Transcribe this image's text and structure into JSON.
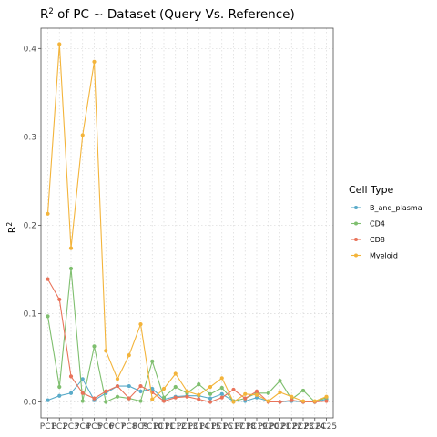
{
  "chart_data": {
    "type": "line",
    "title": "R",
    "title_sup": "2",
    "title_rest": " of PC ~  Dataset (Query Vs. Reference)",
    "xlabel": "",
    "ylabel": "R",
    "ylabel_sup": "2",
    "ylim": [
      -0.018,
      0.423
    ],
    "yticks": [
      0.0,
      0.1,
      0.2,
      0.3,
      0.4
    ],
    "ytick_labels": [
      "0.0",
      "0.1",
      "0.2",
      "0.3",
      "0.4"
    ],
    "x": [
      "PC1",
      "PC2",
      "PC3",
      "PC4",
      "PC5",
      "PC6",
      "PC7",
      "PC8",
      "PC9",
      "PC10",
      "PC11",
      "PC12",
      "PC13",
      "PC14",
      "PC15",
      "PC16",
      "PC17",
      "PC18",
      "PC19",
      "PC20",
      "PC21",
      "PC22",
      "PC23",
      "PC24",
      "PC25"
    ],
    "grid": true,
    "legend": {
      "title": "Cell Type",
      "placement": "right"
    },
    "series": [
      {
        "name": "B_and_plasma",
        "color": "#5aabc9",
        "values": [
          0.002,
          0.007,
          0.01,
          0.026,
          0.002,
          0.01,
          0.018,
          0.018,
          0.012,
          0.015,
          0.003,
          0.006,
          0.007,
          0.007,
          0.004,
          0.009,
          0.001,
          0.001,
          0.005,
          0.001,
          0.0,
          0.001,
          0.0,
          0.0,
          0.003
        ]
      },
      {
        "name": "CD4",
        "color": "#7fbf6f",
        "values": [
          0.097,
          0.017,
          0.151,
          0.001,
          0.063,
          0.0,
          0.006,
          0.004,
          0.001,
          0.046,
          0.005,
          0.017,
          0.01,
          0.02,
          0.009,
          0.016,
          0.001,
          0.004,
          0.01,
          0.01,
          0.024,
          0.003,
          0.013,
          0.0,
          0.005
        ]
      },
      {
        "name": "CD8",
        "color": "#e9735a",
        "values": [
          0.139,
          0.116,
          0.029,
          0.01,
          0.004,
          0.012,
          0.018,
          0.004,
          0.018,
          0.011,
          0.001,
          0.005,
          0.006,
          0.003,
          0.0,
          0.005,
          0.014,
          0.004,
          0.012,
          0.0,
          0.0,
          0.002,
          0.0,
          0.0,
          0.001
        ]
      },
      {
        "name": "Myeloid",
        "color": "#f3b43b",
        "values": [
          0.213,
          0.405,
          0.174,
          0.302,
          0.385,
          0.058,
          0.026,
          0.053,
          0.088,
          0.003,
          0.015,
          0.032,
          0.012,
          0.008,
          0.017,
          0.027,
          0.0,
          0.009,
          0.008,
          0.001,
          0.011,
          0.006,
          0.001,
          0.001,
          0.006
        ]
      }
    ]
  }
}
